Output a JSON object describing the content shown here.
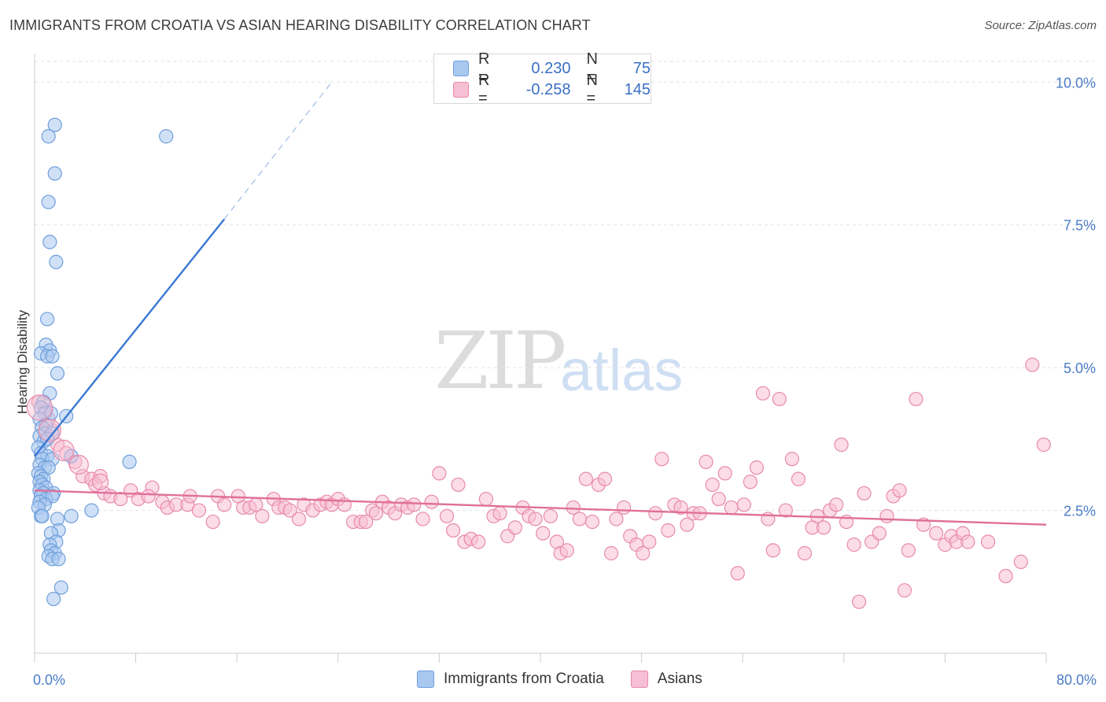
{
  "title": "IMMIGRANTS FROM CROATIA VS ASIAN HEARING DISABILITY CORRELATION CHART",
  "source": "Source: ZipAtlas.com",
  "watermark": {
    "zip": "ZIP",
    "atlas": "atlas"
  },
  "legend": {
    "rows": [
      {
        "r_label": "R =",
        "r_value": "0.230",
        "n_label": "N =",
        "n_value": "75",
        "color": "#a9c8f0",
        "border": "#6f9fdc"
      },
      {
        "r_label": "R =",
        "r_value": "-0.258",
        "n_label": "N =",
        "n_value": "145",
        "color": "#f7bfd3",
        "border": "#e88aab"
      }
    ]
  },
  "bottom_legend": [
    {
      "label": "Immigrants from Croatia",
      "color": "#a9c8f0",
      "border": "#6f9fdc"
    },
    {
      "label": "Asians",
      "color": "#f7bfd3",
      "border": "#e88aab"
    }
  ],
  "chart_data": {
    "type": "scatter",
    "xlabel": "",
    "ylabel": "Hearing Disability",
    "xlim": [
      0,
      80
    ],
    "ylim": [
      0,
      10.5
    ],
    "x_tick_labels": [
      {
        "x": 0,
        "label": "0.0%"
      },
      {
        "x": 80,
        "label": "80.0%"
      }
    ],
    "y_ticks": [
      {
        "y": 2.5,
        "label": "2.5%"
      },
      {
        "y": 5.0,
        "label": "5.0%"
      },
      {
        "y": 7.5,
        "label": "7.5%"
      },
      {
        "y": 10.0,
        "label": "10.0%"
      }
    ],
    "grid": true,
    "series": [
      {
        "name": "Immigrants from Croatia",
        "color": "#6f9fdc",
        "fill": "#a9c8f0",
        "trend": {
          "x0": 0,
          "y0": 3.45,
          "x1": 15,
          "y1": 7.6,
          "dash_x1": 23.5,
          "dash_y1": 10.0,
          "color": "#3a78d4"
        },
        "points": [
          [
            1.6,
            9.25
          ],
          [
            1.1,
            9.05
          ],
          [
            10.4,
            9.05
          ],
          [
            1.6,
            8.4
          ],
          [
            1.1,
            7.9
          ],
          [
            1.2,
            7.2
          ],
          [
            1.7,
            6.85
          ],
          [
            1.0,
            5.85
          ],
          [
            0.9,
            5.4
          ],
          [
            1.2,
            5.3
          ],
          [
            0.5,
            5.25
          ],
          [
            1.0,
            5.2
          ],
          [
            1.4,
            5.2
          ],
          [
            1.8,
            4.9
          ],
          [
            1.2,
            4.55
          ],
          [
            0.7,
            4.4
          ],
          [
            0.5,
            4.3
          ],
          [
            0.8,
            4.2
          ],
          [
            1.3,
            4.2
          ],
          [
            2.5,
            4.15
          ],
          [
            0.4,
            4.1
          ],
          [
            0.9,
            4.0
          ],
          [
            0.6,
            3.95
          ],
          [
            0.8,
            3.85
          ],
          [
            1.4,
            3.85
          ],
          [
            0.4,
            3.8
          ],
          [
            0.7,
            3.7
          ],
          [
            1.0,
            3.75
          ],
          [
            0.3,
            3.6
          ],
          [
            0.5,
            3.5
          ],
          [
            1.0,
            3.45
          ],
          [
            2.9,
            3.45
          ],
          [
            0.6,
            3.4
          ],
          [
            1.4,
            3.4
          ],
          [
            7.5,
            3.35
          ],
          [
            0.4,
            3.3
          ],
          [
            0.8,
            3.25
          ],
          [
            1.1,
            3.25
          ],
          [
            0.3,
            3.15
          ],
          [
            0.5,
            3.1
          ],
          [
            0.7,
            3.05
          ],
          [
            0.4,
            3.0
          ],
          [
            0.6,
            2.95
          ],
          [
            0.9,
            2.9
          ],
          [
            0.4,
            2.85
          ],
          [
            0.7,
            2.8
          ],
          [
            1.5,
            2.8
          ],
          [
            0.5,
            2.75
          ],
          [
            0.9,
            2.7
          ],
          [
            1.4,
            2.75
          ],
          [
            0.4,
            2.65
          ],
          [
            0.8,
            2.6
          ],
          [
            4.5,
            2.5
          ],
          [
            0.3,
            2.55
          ],
          [
            0.5,
            2.4
          ],
          [
            1.8,
            2.35
          ],
          [
            2.9,
            2.4
          ],
          [
            0.6,
            2.4
          ],
          [
            1.9,
            2.15
          ],
          [
            1.3,
            2.1
          ],
          [
            1.7,
            1.95
          ],
          [
            1.2,
            1.9
          ],
          [
            1.3,
            1.8
          ],
          [
            1.6,
            1.75
          ],
          [
            1.1,
            1.7
          ],
          [
            1.4,
            1.65
          ],
          [
            1.9,
            1.65
          ],
          [
            2.1,
            1.15
          ],
          [
            1.5,
            0.95
          ]
        ]
      },
      {
        "name": "Asians",
        "color": "#e88aab",
        "fill": "#f7bfd3",
        "trend": {
          "x0": 0,
          "y0": 2.85,
          "x1": 80,
          "y1": 2.25,
          "color": "#e0709a"
        },
        "points": [
          [
            0.3,
            4.4
          ],
          [
            0.9,
            4.25
          ],
          [
            1.1,
            4.1
          ],
          [
            1.4,
            3.9
          ],
          [
            1.8,
            3.65
          ],
          [
            2.5,
            3.5
          ],
          [
            3.2,
            3.35
          ],
          [
            3.8,
            3.1
          ],
          [
            4.5,
            3.05
          ],
          [
            5.2,
            3.1
          ],
          [
            4.8,
            2.95
          ],
          [
            5.5,
            2.8
          ],
          [
            6.0,
            2.75
          ],
          [
            6.8,
            2.7
          ],
          [
            7.6,
            2.85
          ],
          [
            8.2,
            2.7
          ],
          [
            9.3,
            2.9
          ],
          [
            9.0,
            2.75
          ],
          [
            10.1,
            2.65
          ],
          [
            10.5,
            2.55
          ],
          [
            11.2,
            2.6
          ],
          [
            12.1,
            2.6
          ],
          [
            12.3,
            2.75
          ],
          [
            13.0,
            2.5
          ],
          [
            14.1,
            2.3
          ],
          [
            14.5,
            2.75
          ],
          [
            15.0,
            2.6
          ],
          [
            16.1,
            2.75
          ],
          [
            16.5,
            2.55
          ],
          [
            17.0,
            2.55
          ],
          [
            17.5,
            2.6
          ],
          [
            18.0,
            2.4
          ],
          [
            18.9,
            2.7
          ],
          [
            19.3,
            2.55
          ],
          [
            19.8,
            2.55
          ],
          [
            20.2,
            2.5
          ],
          [
            20.9,
            2.35
          ],
          [
            21.3,
            2.6
          ],
          [
            22.0,
            2.5
          ],
          [
            22.6,
            2.6
          ],
          [
            23.1,
            2.65
          ],
          [
            23.5,
            2.6
          ],
          [
            24.0,
            2.7
          ],
          [
            24.5,
            2.6
          ],
          [
            25.2,
            2.3
          ],
          [
            25.8,
            2.3
          ],
          [
            26.2,
            2.3
          ],
          [
            26.7,
            2.5
          ],
          [
            27.0,
            2.45
          ],
          [
            27.5,
            2.65
          ],
          [
            28.0,
            2.55
          ],
          [
            28.5,
            2.45
          ],
          [
            29.0,
            2.6
          ],
          [
            29.5,
            2.55
          ],
          [
            30.0,
            2.6
          ],
          [
            30.7,
            2.35
          ],
          [
            31.4,
            2.65
          ],
          [
            32.0,
            3.15
          ],
          [
            32.6,
            2.4
          ],
          [
            33.1,
            2.15
          ],
          [
            33.5,
            2.95
          ],
          [
            34.0,
            1.95
          ],
          [
            34.5,
            2.0
          ],
          [
            35.1,
            1.95
          ],
          [
            35.7,
            2.7
          ],
          [
            36.3,
            2.4
          ],
          [
            36.8,
            2.45
          ],
          [
            37.4,
            2.05
          ],
          [
            38.0,
            2.2
          ],
          [
            38.6,
            2.55
          ],
          [
            39.1,
            2.4
          ],
          [
            39.6,
            2.35
          ],
          [
            40.2,
            2.1
          ],
          [
            40.8,
            2.4
          ],
          [
            41.3,
            1.95
          ],
          [
            41.6,
            1.75
          ],
          [
            42.1,
            1.8
          ],
          [
            42.6,
            2.55
          ],
          [
            43.1,
            2.35
          ],
          [
            43.6,
            3.05
          ],
          [
            44.1,
            2.3
          ],
          [
            44.6,
            2.95
          ],
          [
            45.1,
            3.05
          ],
          [
            45.6,
            1.75
          ],
          [
            46.0,
            2.35
          ],
          [
            46.6,
            2.55
          ],
          [
            47.1,
            2.05
          ],
          [
            47.6,
            1.9
          ],
          [
            48.1,
            1.75
          ],
          [
            48.6,
            1.95
          ],
          [
            49.1,
            2.45
          ],
          [
            49.6,
            3.4
          ],
          [
            50.1,
            2.15
          ],
          [
            50.6,
            2.6
          ],
          [
            51.1,
            2.55
          ],
          [
            51.6,
            2.25
          ],
          [
            52.1,
            2.45
          ],
          [
            52.6,
            2.45
          ],
          [
            53.1,
            3.35
          ],
          [
            53.6,
            2.95
          ],
          [
            54.1,
            2.7
          ],
          [
            54.6,
            3.15
          ],
          [
            55.1,
            2.55
          ],
          [
            55.6,
            1.4
          ],
          [
            56.1,
            2.6
          ],
          [
            56.6,
            3.0
          ],
          [
            57.1,
            3.25
          ],
          [
            57.6,
            4.55
          ],
          [
            58.0,
            2.35
          ],
          [
            58.4,
            1.8
          ],
          [
            58.9,
            4.45
          ],
          [
            59.4,
            2.5
          ],
          [
            59.9,
            3.4
          ],
          [
            60.4,
            3.05
          ],
          [
            60.9,
            1.75
          ],
          [
            61.5,
            2.2
          ],
          [
            61.9,
            2.4
          ],
          [
            62.4,
            2.2
          ],
          [
            62.9,
            2.5
          ],
          [
            63.4,
            2.6
          ],
          [
            63.8,
            3.65
          ],
          [
            64.2,
            2.3
          ],
          [
            64.8,
            1.9
          ],
          [
            65.2,
            0.9
          ],
          [
            65.6,
            2.8
          ],
          [
            66.2,
            1.95
          ],
          [
            66.8,
            2.1
          ],
          [
            67.4,
            2.4
          ],
          [
            67.9,
            2.75
          ],
          [
            68.4,
            2.85
          ],
          [
            68.8,
            1.1
          ],
          [
            69.1,
            1.8
          ],
          [
            69.7,
            4.45
          ],
          [
            70.3,
            2.25
          ],
          [
            71.3,
            2.1
          ],
          [
            72.0,
            1.9
          ],
          [
            72.5,
            2.05
          ],
          [
            72.9,
            1.95
          ],
          [
            73.4,
            2.1
          ],
          [
            73.8,
            1.95
          ],
          [
            75.4,
            1.95
          ],
          [
            76.8,
            1.35
          ],
          [
            78.0,
            1.6
          ],
          [
            78.9,
            5.05
          ],
          [
            79.8,
            3.65
          ]
        ]
      }
    ]
  }
}
